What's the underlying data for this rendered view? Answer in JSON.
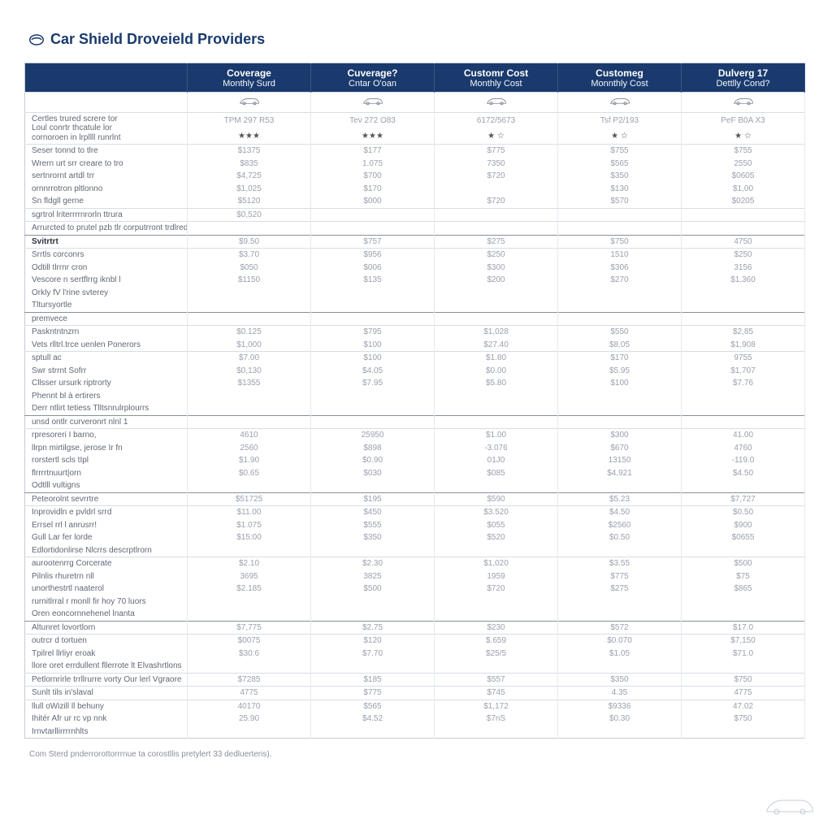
{
  "colors": {
    "header_bg": "#1a3a6e",
    "header_text": "#ffffff",
    "row_border": "#d8dde5",
    "section_border": "#88909c",
    "label_text": "#606875",
    "value_text": "#9aa0ad",
    "title_text": "#1a3a6e",
    "page_bg": "#ffffff"
  },
  "title": "Car Shield Droveield Providers",
  "columns": [
    {
      "line1": "Coverage",
      "line2": "Monthly Surd",
      "plan": "TPM 297 R53",
      "rating": "★★★"
    },
    {
      "line1": "Cuverage?",
      "line2": "Cntar O'oan",
      "plan": "Tev 272 O83",
      "rating": "★★★"
    },
    {
      "line1": "Customr Cost",
      "line2": "Monthly Cost",
      "plan": "6172/5673",
      "rating": "★ ☆"
    },
    {
      "line1": "Customeg",
      "line2": "Monnthly Cost",
      "plan": "Tsf P2/193",
      "rating": "★ ☆"
    },
    {
      "line1": "Dulverg 17",
      "line2": "Dettlly Cond?",
      "plan": "PeF B0A X3",
      "rating": "★ ☆"
    }
  ],
  "sections": [
    {
      "header": [
        "Certles trured screre tor",
        "Loul conrtr thcatule lor",
        "cornoroen in lrpllll runrlnt"
      ],
      "rows": [
        {
          "label": "Seser tonnd to tlre",
          "v": [
            "$1375",
            "$177",
            "$775",
            "$755",
            "$755"
          ]
        },
        {
          "label": "Wrern urt srr creare to tro",
          "v": [
            "$835",
            "1.075",
            "7350",
            "$565",
            "2550"
          ],
          "sub": true
        },
        {
          "label": "sertnrornt artdl trr",
          "v": [
            "$4,725",
            "$700",
            "$720",
            "$350",
            "$0605"
          ],
          "sub": true
        },
        {
          "label": "ornnrrotron pltlonno",
          "v": [
            "$1,025",
            "$170",
            "",
            "$130",
            "$1,00"
          ],
          "sub": true
        },
        {
          "label": "Sn fldgll gerne",
          "v": [
            "$5120",
            "$000",
            "$720",
            "$570",
            "$0205"
          ],
          "sub": true
        },
        {
          "label": "sgrtrol lriterrrrnrorln ttrura",
          "v": [
            "$0,520",
            "",
            "",
            "",
            ""
          ]
        },
        {
          "label": "Arrurcted to prutel pzb tlr corputrront trdlredllorn",
          "v": [
            "",
            "",
            "",
            "",
            ""
          ]
        }
      ]
    },
    {
      "header": [
        "Svitrtrt"
      ],
      "dark": true,
      "header_v": [
        "$9.50",
        "$757",
        "$275",
        "$750",
        "4750"
      ],
      "rows": [
        {
          "label": "Srrtls corconrs",
          "v": [
            "$3.70",
            "$956",
            "$250",
            "1510",
            "$250"
          ]
        },
        {
          "label": "Odtill tlrrnr cron",
          "v": [
            "$050",
            "$006",
            "$300",
            "$306",
            "3156"
          ],
          "sub": true
        },
        {
          "label": "Vescore n sertflrrg iknbl l",
          "v": [
            "$1150",
            "$135",
            "$200",
            "$270",
            "$1,360"
          ],
          "sub": true
        },
        {
          "label": "Orkly fV l'rine svterey",
          "v": [
            "",
            "",
            "",
            "",
            ""
          ],
          "sub": true
        },
        {
          "label": "Tltursyortle",
          "v": [
            "",
            "",
            "",
            "",
            ""
          ],
          "sub": true
        }
      ]
    },
    {
      "header": [
        "premvece"
      ],
      "rows": [
        {
          "label": "Paskntntnzrn",
          "v": [
            "$0.125",
            "$795",
            "$1,028",
            "$550",
            "$2,85"
          ]
        },
        {
          "label": "Vets rlltrl.trce uenlen Ponerors",
          "v": [
            "$1,000",
            "$100",
            "$27.40",
            "$8.05",
            "$1,908"
          ],
          "sub": true
        },
        {
          "label": "sptull ac",
          "v": [
            "$7.00",
            "$100",
            "$1.80",
            "$170",
            "9755"
          ]
        },
        {
          "label": "Swr strrnt Sofrr",
          "v": [
            "$0,130",
            "$4.05",
            "$0.00",
            "$5.95",
            "$1,707"
          ],
          "sub": true
        },
        {
          "label": "Cllsser ursurk riptrorty",
          "v": [
            "$1355",
            "$7.95",
            "$5.80",
            "$100",
            "$7.76"
          ],
          "sub": true
        },
        {
          "label": "Phennt bl à ertirers",
          "v": [
            "",
            "",
            "",
            "",
            ""
          ],
          "sub": true
        },
        {
          "label": "Derr ntlirt tetiess  Tlltsnrulrplourrs",
          "v": [
            "",
            "",
            "",
            "",
            ""
          ],
          "sub": true
        }
      ]
    },
    {
      "header": [
        "unsd ontlr curveronrt nlnl 1"
      ],
      "rows": [
        {
          "label": "rpresoreri I barno,",
          "v": [
            "4610",
            "25950",
            "$1.00",
            "$300",
            "41.00"
          ]
        },
        {
          "label": "llrpn mirtilgse, jerose Ir fn",
          "v": [
            "2560",
            "$898",
            "-3.076",
            "$670",
            "4760"
          ],
          "sub": true
        },
        {
          "label": "rorstertl scls tIpl",
          "v": [
            "$1.90",
            "$0.90",
            "01J0",
            "13150",
            "-119.0"
          ],
          "sub": true
        },
        {
          "label": "flrrrrtnuurt|orn",
          "v": [
            "$0.65",
            "$030",
            "$085",
            "$4,921",
            "$4.50"
          ],
          "sub": true
        },
        {
          "label": "Odtlll vultigns",
          "v": [
            "",
            "",
            "",
            "",
            ""
          ],
          "sub": true
        }
      ]
    },
    {
      "header": [
        "Peteorolnt sevrrtre"
      ],
      "header_v": [
        "$51725",
        "$195",
        "$590",
        "$5.23",
        "$7,727"
      ],
      "rows": [
        {
          "label": "Inprovidln e pvldrl srrd",
          "v": [
            "$11.00",
            "$450",
            "$3.520",
            "$4.50",
            "$0.50"
          ]
        },
        {
          "label": "Errsel rrl l anrusrr!",
          "v": [
            "$1.075",
            "$555",
            "$055",
            "$2560",
            "$900"
          ],
          "sub": true
        },
        {
          "label": "Gull Lar fer lorde",
          "v": [
            "$15:00",
            "$350",
            "$520",
            "$0.50",
            "$0655"
          ],
          "sub": true
        },
        {
          "label": "Edlortidonlirse  Nlcrrs descrptlrorn",
          "v": [
            "",
            "",
            "",
            "",
            ""
          ],
          "sub": true
        },
        {
          "label": "aurootenrrg Corcerate",
          "v": [
            "$2.10",
            "$2.30",
            "$1,020",
            "$3.55",
            "$500"
          ]
        },
        {
          "label": "Pilnlis rhuretrn nll",
          "v": [
            "3695",
            "3825",
            "1959",
            "$775",
            "$75"
          ],
          "sub": true
        },
        {
          "label": "unorthestrtl naaterol",
          "v": [
            "$2.185",
            "$500",
            "$720",
            "$275",
            "$865"
          ],
          "sub": true
        },
        {
          "label": "rurnitlrral r monll fir hoy  70 luors",
          "v": [
            "",
            "",
            "",
            "",
            ""
          ],
          "sub": true
        },
        {
          "label": "Oren eoncornnehenel lnanta",
          "v": [
            "",
            "",
            "",
            "",
            ""
          ],
          "sub": true
        }
      ]
    },
    {
      "header": [
        "Altunret lovortlorn"
      ],
      "header_v": [
        "$7,775",
        "$2.75",
        "$230",
        "$572",
        "$17.0"
      ],
      "rows": [
        {
          "label": "outrcr d tortuen",
          "v": [
            "$0075",
            "$120",
            "$.659",
            "$0.070",
            "$7,150"
          ]
        },
        {
          "label": "Tpilrel llrliyr eroak",
          "v": [
            "$30:6",
            "$7.70",
            "$25/5",
            "$1.05",
            "$71.0"
          ],
          "sub": true
        },
        {
          "label": "llore oret errdullent fllerrote lt  Elvashrtlons",
          "v": [
            "",
            "",
            "",
            "",
            ""
          ],
          "sub": true
        },
        {
          "label": "Petlornrirle trrllrurre vorty  Our lerl Vgraore",
          "v": [
            "$7285",
            "$185",
            "$557",
            "$350",
            "$750"
          ]
        },
        {
          "label": "Sunlt tils in'slaval",
          "v": [
            "4775",
            "$775",
            "$745",
            "4.35",
            "4775"
          ]
        },
        {
          "label": "llull oWizill ll behuny",
          "v": [
            "40170",
            "$565",
            "$1,172",
            "$9336",
            "47.02"
          ]
        },
        {
          "label": "Ihitér Afr ur rc vp nnk",
          "v": [
            "25.90",
            "$4.52",
            "$7nS",
            "$0.30",
            "$750"
          ],
          "sub": true
        },
        {
          "label": "Irnvtarllirrrrnhlts",
          "v": [
            "",
            "",
            "",
            "",
            ""
          ],
          "sub": true
        }
      ]
    }
  ],
  "footnote": "Com Sterd pnderrorottorrrnue ta corostllis pretylert 33 dedluerteris)."
}
